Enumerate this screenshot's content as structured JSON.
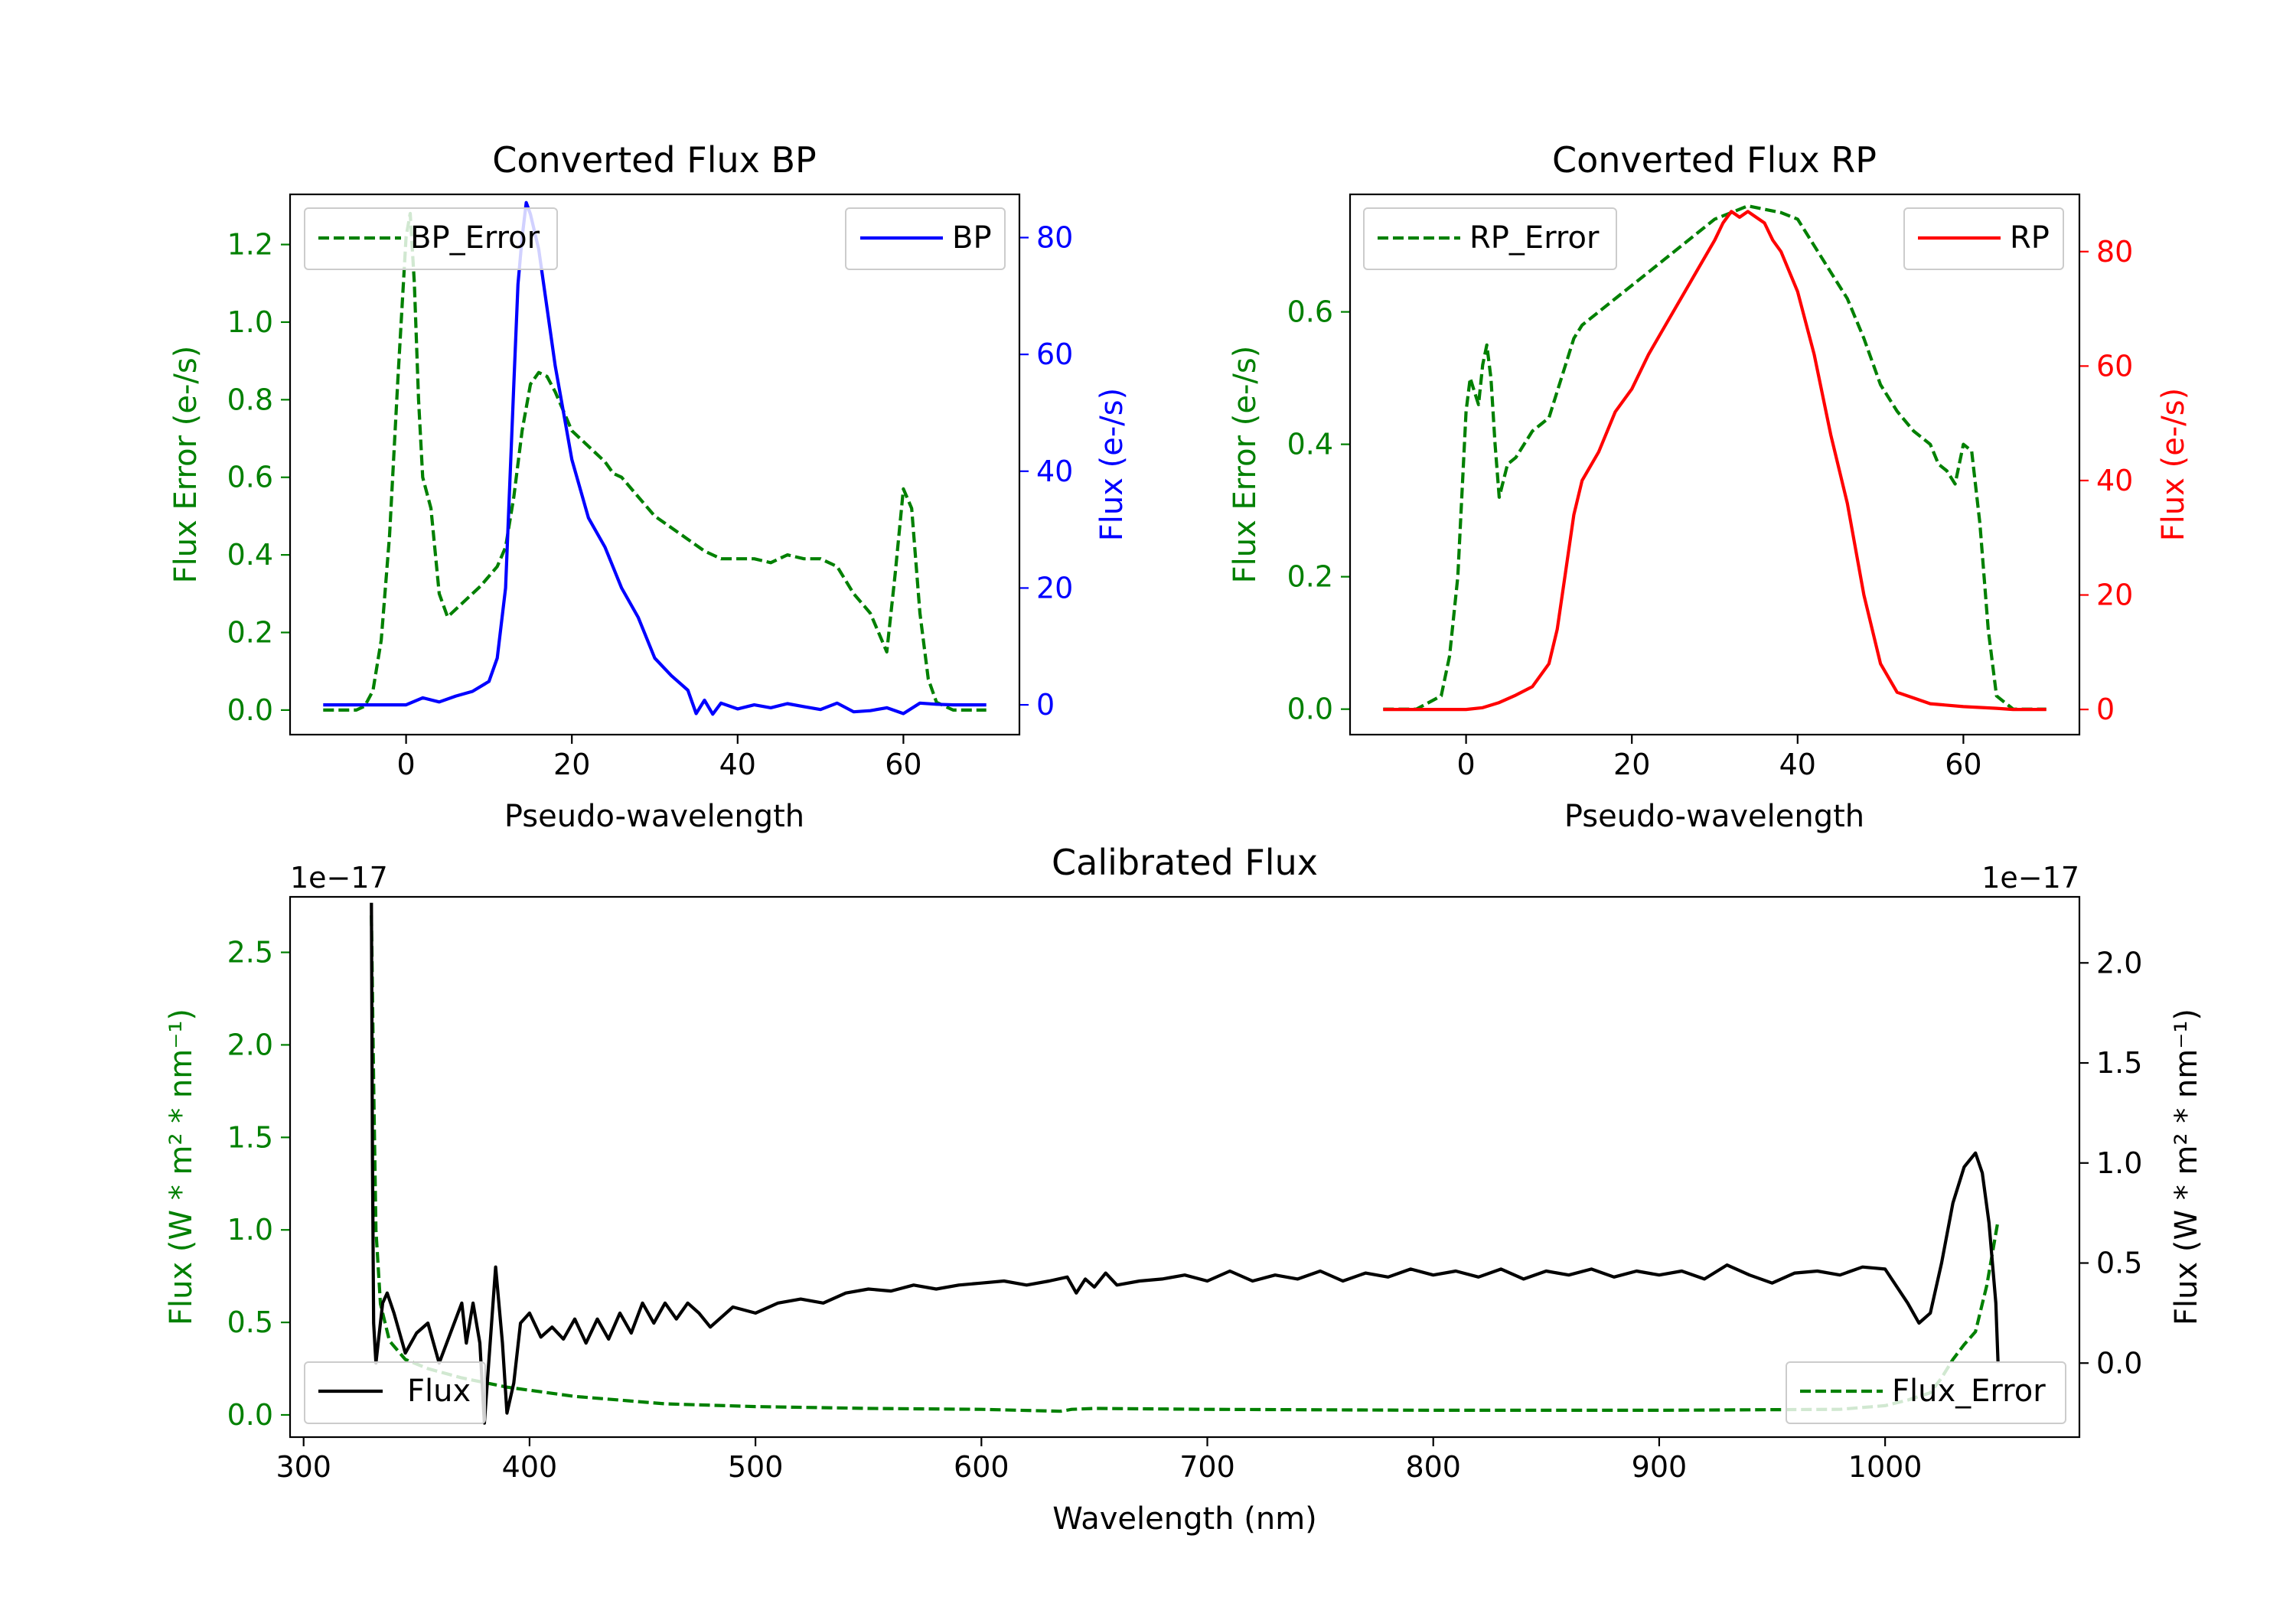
{
  "colors": {
    "bp": "#0000ff",
    "rp": "#ff0000",
    "error": "#008000",
    "flux": "#000000",
    "axis": "#000000"
  },
  "chart_data": [
    {
      "id": "bp",
      "type": "line",
      "title": "Converted Flux BP",
      "xlabel": "Pseudo-wavelength",
      "ylabel_left": "Flux Error (e-/s)",
      "ylabel_right": "Flux (e-/s)",
      "xlim": [
        -14.0,
        74.0
      ],
      "ylim_left": [
        -0.0633,
        1.3293
      ],
      "ylim_right": [
        -5.1,
        87.4
      ],
      "xticks": [
        0,
        20,
        40,
        60
      ],
      "yticks_left": [
        0.0,
        0.2,
        0.4,
        0.6,
        0.8,
        1.0,
        1.2
      ],
      "yticks_right": [
        0,
        20,
        40,
        60,
        80
      ],
      "legend_left": {
        "label": "BP_Error",
        "position": "upper left"
      },
      "legend_right": {
        "label": "BP",
        "position": "upper right"
      },
      "series": [
        {
          "name": "BP_Error",
          "axis": "left",
          "color": "#008000",
          "style": "dashed",
          "x": [
            -10,
            -6,
            -5,
            -4,
            -3,
            -2,
            -1,
            0,
            0.5,
            1,
            1.5,
            2,
            3,
            4,
            5,
            7,
            9,
            11,
            12,
            13,
            14,
            15,
            16,
            17,
            18,
            19,
            20,
            22,
            24,
            25,
            26,
            28,
            30,
            32,
            34,
            36,
            38,
            40,
            42,
            44,
            46,
            48,
            50,
            52,
            54,
            56,
            57,
            58,
            59,
            60,
            61,
            62,
            63,
            64,
            66,
            68,
            70
          ],
          "y": [
            0.0,
            0.0,
            0.01,
            0.05,
            0.18,
            0.45,
            0.85,
            1.22,
            1.28,
            1.1,
            0.8,
            0.6,
            0.52,
            0.3,
            0.24,
            0.28,
            0.32,
            0.37,
            0.42,
            0.55,
            0.72,
            0.84,
            0.87,
            0.86,
            0.82,
            0.77,
            0.72,
            0.68,
            0.64,
            0.61,
            0.6,
            0.55,
            0.5,
            0.47,
            0.44,
            0.41,
            0.39,
            0.39,
            0.39,
            0.38,
            0.4,
            0.39,
            0.39,
            0.37,
            0.3,
            0.25,
            0.2,
            0.15,
            0.35,
            0.57,
            0.52,
            0.25,
            0.08,
            0.02,
            0.0,
            0.0,
            0.0
          ]
        },
        {
          "name": "BP",
          "axis": "right",
          "color": "#0000ff",
          "style": "solid",
          "x": [
            -10,
            -5,
            0,
            2,
            4,
            6,
            8,
            10,
            11,
            12,
            13,
            13.5,
            14,
            14.5,
            15,
            15.5,
            16,
            17,
            18,
            19,
            20,
            22,
            24,
            26,
            28,
            30,
            32,
            34,
            35,
            36,
            37,
            38,
            40,
            42,
            44,
            46,
            48,
            50,
            52,
            54,
            56,
            58,
            60,
            62,
            64,
            66,
            70
          ],
          "y": [
            0,
            0,
            0,
            1.2,
            0.5,
            1.5,
            2.3,
            4,
            8,
            20,
            55,
            72,
            80,
            86,
            84,
            81,
            78,
            68,
            58,
            50,
            42,
            32,
            27,
            20,
            15,
            8,
            5,
            2.5,
            -1.5,
            0.8,
            -1.6,
            0.3,
            -0.7,
            0,
            -0.5,
            0.2,
            -0.3,
            -0.8,
            0.3,
            -1.2,
            -1.0,
            -0.5,
            -1.5,
            0.3,
            0.1,
            0,
            0
          ]
        }
      ]
    },
    {
      "id": "rp",
      "type": "line",
      "title": "Converted Flux RP",
      "xlabel": "Pseudo-wavelength",
      "ylabel_left": "Flux Error (e-/s)",
      "ylabel_right": "Flux (e-/s)",
      "xlim": [
        -14.0,
        74.0
      ],
      "ylim_left": [
        -0.0385,
        0.7775
      ],
      "ylim_right": [
        -4.4,
        90.0
      ],
      "xticks": [
        0,
        20,
        40,
        60
      ],
      "yticks_left": [
        0.0,
        0.2,
        0.4,
        0.6
      ],
      "yticks_right": [
        0,
        20,
        40,
        60,
        80
      ],
      "legend_left": {
        "label": "RP_Error",
        "position": "upper left"
      },
      "legend_right": {
        "label": "RP",
        "position": "upper right"
      },
      "series": [
        {
          "name": "RP_Error",
          "axis": "left",
          "color": "#008000",
          "style": "dashed",
          "x": [
            -10,
            -6,
            -3,
            -2,
            -1,
            0,
            0.5,
            1,
            1.5,
            2,
            2.5,
            3,
            3.5,
            4,
            5,
            6,
            7,
            8,
            9,
            10,
            11,
            12,
            13,
            14,
            16,
            18,
            20,
            22,
            24,
            26,
            28,
            30,
            32,
            34,
            36,
            38,
            40,
            42,
            44,
            46,
            48,
            50,
            52,
            54,
            56,
            57,
            58,
            59,
            60,
            61,
            62,
            63,
            64,
            66,
            70
          ],
          "y": [
            0.0,
            0.0,
            0.02,
            0.08,
            0.2,
            0.45,
            0.5,
            0.48,
            0.46,
            0.52,
            0.55,
            0.5,
            0.4,
            0.32,
            0.37,
            0.38,
            0.4,
            0.42,
            0.43,
            0.44,
            0.48,
            0.52,
            0.56,
            0.58,
            0.6,
            0.62,
            0.64,
            0.66,
            0.68,
            0.7,
            0.72,
            0.74,
            0.75,
            0.76,
            0.755,
            0.75,
            0.74,
            0.7,
            0.66,
            0.62,
            0.56,
            0.49,
            0.45,
            0.42,
            0.4,
            0.37,
            0.36,
            0.34,
            0.4,
            0.39,
            0.28,
            0.12,
            0.02,
            0.0,
            0.0
          ]
        },
        {
          "name": "RP",
          "axis": "right",
          "color": "#ff0000",
          "style": "solid",
          "x": [
            -10,
            -4,
            0,
            2,
            4,
            6,
            8,
            10,
            11,
            12,
            13,
            14,
            16,
            18,
            20,
            22,
            24,
            26,
            28,
            30,
            31,
            32,
            33,
            34,
            35,
            36,
            37,
            38,
            40,
            42,
            44,
            46,
            48,
            50,
            52,
            54,
            56,
            60,
            64,
            66,
            70
          ],
          "y": [
            0,
            0,
            0,
            0.3,
            1.2,
            2.5,
            4,
            8,
            14,
            24,
            34,
            40,
            45,
            52,
            56,
            62,
            67,
            72,
            77,
            82,
            85,
            87,
            86,
            87,
            86,
            85,
            82,
            80,
            73,
            62,
            48,
            36,
            20,
            8,
            3,
            2,
            1,
            0.5,
            0.2,
            0,
            0
          ]
        }
      ]
    },
    {
      "id": "calibrated",
      "type": "line",
      "title": "Calibrated Flux",
      "xlabel": "Wavelength (nm)",
      "ylabel_left": "Flux (W * m² * nm⁻¹)",
      "ylabel_right": "Flux (W * m² * nm⁻¹)",
      "offset_left": "1e−17",
      "offset_right": "1e−17",
      "xlim": [
        294,
        1086
      ],
      "ylim_left": [
        -0.12,
        2.8
      ],
      "ylim_right": [
        -0.37,
        2.33
      ],
      "xticks": [
        300,
        400,
        500,
        600,
        700,
        800,
        900,
        1000
      ],
      "yticks_left": [
        0.0,
        0.5,
        1.0,
        1.5,
        2.0,
        2.5
      ],
      "yticks_right": [
        0.0,
        0.5,
        1.0,
        1.5,
        2.0
      ],
      "legend_left": {
        "label": "Flux",
        "position": "lower left"
      },
      "legend_right": {
        "label": "Flux_Error",
        "position": "lower right"
      },
      "series": [
        {
          "name": "Flux_Error",
          "axis": "left",
          "color": "#008000",
          "style": "dashed",
          "x": [
            330,
            331,
            332,
            334,
            338,
            345,
            355,
            370,
            390,
            420,
            460,
            500,
            550,
            600,
            635,
            640,
            650,
            700,
            800,
            900,
            980,
            1000,
            1010,
            1020,
            1025,
            1030,
            1035,
            1040,
            1045,
            1050
          ],
          "y": [
            2.7,
            1.8,
            1.0,
            0.6,
            0.4,
            0.3,
            0.25,
            0.2,
            0.15,
            0.1,
            0.06,
            0.045,
            0.035,
            0.03,
            0.02,
            0.03,
            0.035,
            0.03,
            0.025,
            0.025,
            0.03,
            0.05,
            0.08,
            0.12,
            0.2,
            0.3,
            0.38,
            0.45,
            0.7,
            1.05
          ]
        },
        {
          "name": "Flux",
          "axis": "right",
          "color": "#000000",
          "style": "solid",
          "x": [
            330,
            330.5,
            331,
            332,
            333,
            335,
            337,
            340,
            345,
            350,
            355,
            360,
            365,
            370,
            372,
            375,
            378,
            380,
            385,
            388,
            390,
            393,
            396,
            400,
            405,
            410,
            415,
            420,
            425,
            430,
            435,
            440,
            445,
            450,
            455,
            460,
            465,
            470,
            475,
            480,
            490,
            500,
            510,
            520,
            530,
            540,
            550,
            560,
            570,
            580,
            590,
            600,
            610,
            620,
            630,
            638,
            642,
            646,
            650,
            655,
            660,
            670,
            680,
            690,
            700,
            710,
            720,
            730,
            740,
            750,
            760,
            770,
            780,
            790,
            800,
            810,
            820,
            830,
            840,
            850,
            860,
            870,
            880,
            890,
            900,
            910,
            920,
            930,
            940,
            950,
            960,
            970,
            980,
            990,
            1000,
            1010,
            1015,
            1020,
            1025,
            1030,
            1035,
            1040,
            1043,
            1046,
            1049,
            1050
          ],
          "y": [
            2.3,
            1.0,
            0.2,
            0.0,
            0.1,
            0.3,
            0.35,
            0.25,
            0.05,
            0.15,
            0.2,
            0.0,
            0.15,
            0.3,
            0.1,
            0.3,
            0.1,
            -0.3,
            0.48,
            0.1,
            -0.25,
            -0.1,
            0.2,
            0.25,
            0.13,
            0.18,
            0.12,
            0.22,
            0.1,
            0.22,
            0.12,
            0.25,
            0.15,
            0.3,
            0.2,
            0.3,
            0.22,
            0.3,
            0.25,
            0.18,
            0.28,
            0.25,
            0.3,
            0.32,
            0.3,
            0.35,
            0.37,
            0.36,
            0.39,
            0.37,
            0.39,
            0.4,
            0.41,
            0.39,
            0.41,
            0.43,
            0.35,
            0.42,
            0.38,
            0.45,
            0.39,
            0.41,
            0.42,
            0.44,
            0.41,
            0.46,
            0.41,
            0.44,
            0.42,
            0.46,
            0.41,
            0.45,
            0.43,
            0.47,
            0.44,
            0.46,
            0.43,
            0.47,
            0.42,
            0.46,
            0.44,
            0.47,
            0.43,
            0.46,
            0.44,
            0.46,
            0.42,
            0.49,
            0.44,
            0.4,
            0.45,
            0.46,
            0.44,
            0.48,
            0.47,
            0.3,
            0.2,
            0.25,
            0.5,
            0.8,
            0.98,
            1.05,
            0.95,
            0.7,
            0.3,
            0.0
          ]
        }
      ]
    }
  ]
}
